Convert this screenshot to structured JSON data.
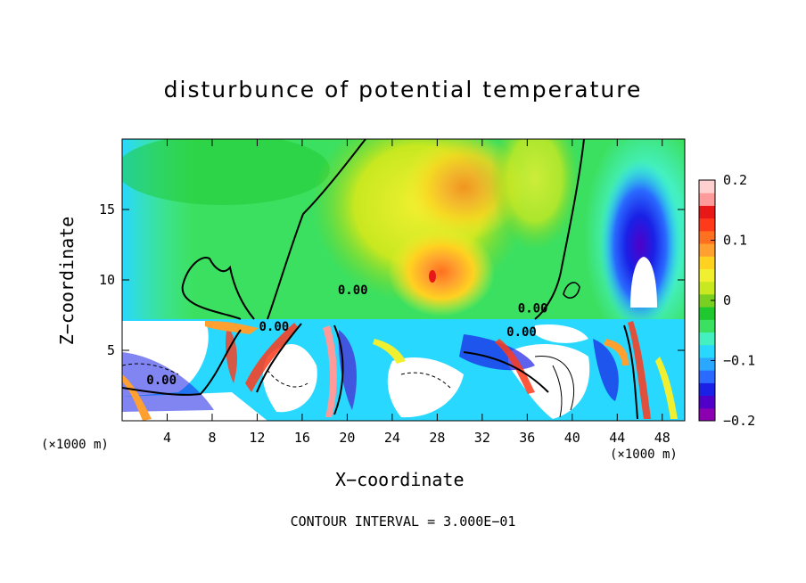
{
  "chart_data": {
    "type": "heatmap",
    "title": "disturbunce of potential temperature",
    "xlabel": "X−coordinate",
    "ylabel": "Z−coordinate",
    "x_unit": "(×1000 m)",
    "x_ticks": [
      4,
      8,
      12,
      16,
      20,
      24,
      28,
      32,
      36,
      40,
      44,
      48
    ],
    "y_ticks": [
      5,
      10,
      15
    ],
    "xlim": [
      0,
      50
    ],
    "ylim": [
      0,
      20
    ],
    "colorbar": {
      "range": [
        -0.2,
        0.2
      ],
      "tick_values": [
        0.2,
        0.1,
        0,
        -0.1,
        -0.2
      ],
      "tick_labels": [
        "0.2",
        "0.1",
        "0",
        "−0.1",
        "−0.2"
      ],
      "colors": [
        "#8b00b0",
        "#5000c8",
        "#1a20e6",
        "#2a6aff",
        "#2aa8ff",
        "#28d8ff",
        "#44f0c0",
        "#3ce060",
        "#20c830",
        "#7ad020",
        "#c8e820",
        "#f0f030",
        "#ffd220",
        "#ffa030",
        "#ff7020",
        "#ff3a1a",
        "#e81818",
        "#ff9a9a",
        "#ffd0d0"
      ]
    },
    "contour_labels": [
      {
        "text": "0.00",
        "x": 20.5,
        "z": 9.0
      },
      {
        "text": "0.00",
        "x": 13.5,
        "z": 6.4
      },
      {
        "text": "0.00",
        "x": 3.5,
        "z": 2.6
      },
      {
        "text": "0.00",
        "x": 36.5,
        "z": 7.7
      },
      {
        "text": "0.00",
        "x": 35.5,
        "z": 6.0
      }
    ],
    "contour_interval": "CONTOUR INTERVAL = 3.000E−01"
  }
}
